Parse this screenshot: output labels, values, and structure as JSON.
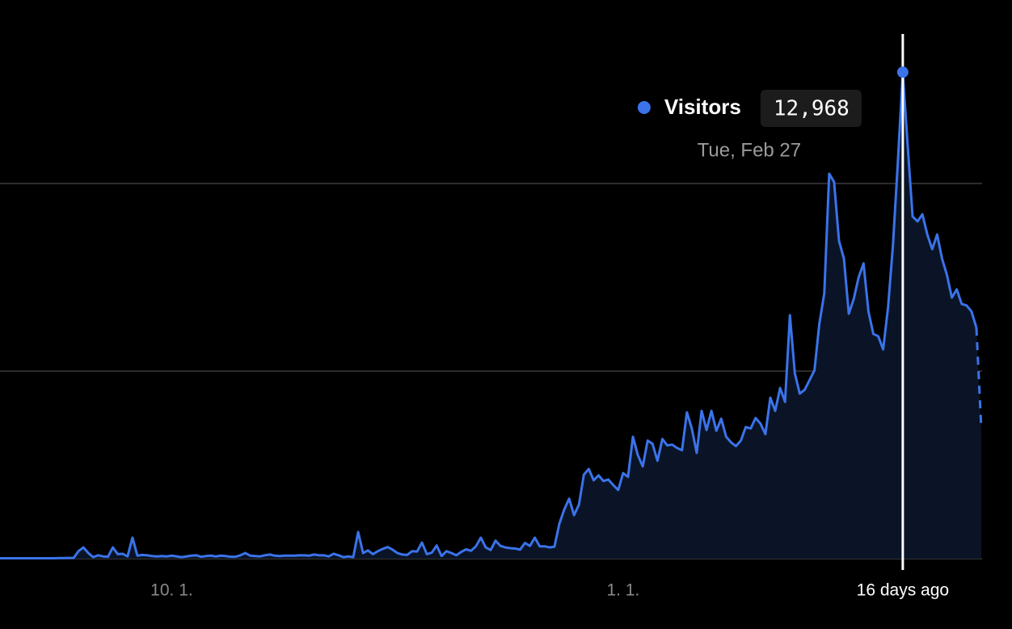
{
  "chart_data": {
    "type": "area",
    "series": [
      {
        "name": "Visitors",
        "color": "#3b73ea",
        "values": [
          10,
          10,
          10,
          10,
          10,
          10,
          10,
          10,
          10,
          10,
          10,
          10,
          15,
          15,
          20,
          20,
          200,
          300,
          150,
          40,
          90,
          60,
          50,
          300,
          120,
          130,
          60,
          560,
          80,
          100,
          90,
          70,
          60,
          70,
          60,
          80,
          60,
          40,
          60,
          80,
          90,
          50,
          70,
          80,
          60,
          80,
          70,
          50,
          50,
          90,
          150,
          80,
          70,
          60,
          90,
          110,
          80,
          70,
          80,
          80,
          80,
          90,
          90,
          80,
          110,
          90,
          90,
          60,
          130,
          90,
          40,
          60,
          40,
          710,
          150,
          220,
          120,
          200,
          260,
          310,
          240,
          150,
          110,
          100,
          200,
          190,
          430,
          120,
          160,
          350,
          70,
          200,
          150,
          90,
          180,
          250,
          210,
          330,
          560,
          300,
          230,
          480,
          340,
          300,
          280,
          270,
          240,
          420,
          340,
          560,
          330,
          330,
          300,
          320,
          930,
          1310,
          1600,
          1160,
          1440,
          2240,
          2390,
          2090,
          2220,
          2070,
          2110,
          1960,
          1830,
          2280,
          2180,
          3250,
          2760,
          2460,
          3150,
          3060,
          2610,
          3190,
          3020,
          3040,
          2950,
          2890,
          3900,
          3470,
          2820,
          3940,
          3430,
          3940,
          3410,
          3730,
          3250,
          3100,
          3000,
          3150,
          3510,
          3470,
          3750,
          3600,
          3320,
          4290,
          3940,
          4550,
          4180,
          6490,
          4940,
          4400,
          4500,
          4760,
          5020,
          6270,
          7070,
          10260,
          10040,
          8470,
          8000,
          6530,
          6920,
          7500,
          7870,
          6590,
          5990,
          5930,
          5580,
          6700,
          8360,
          10580,
          12968,
          11010,
          9120,
          8990,
          9180,
          8640,
          8250,
          8640,
          8000,
          7560,
          6960,
          7180,
          6790,
          6750,
          6590,
          6160,
          3470
        ]
      }
    ],
    "xlim": [
      0,
      200
    ],
    "xticks": [
      {
        "value": 35,
        "label": "10. 1."
      },
      {
        "value": 127,
        "label": "1. 1."
      },
      {
        "value": 184,
        "label": "16 days ago"
      }
    ],
    "ylim": [
      0,
      14000
    ],
    "yticks": [
      0,
      5000,
      10000
    ],
    "grid": true,
    "partial_last": true,
    "tooltip": {
      "index": 184,
      "label": "Tue, Feb 27",
      "value_label": "12,968"
    }
  }
}
